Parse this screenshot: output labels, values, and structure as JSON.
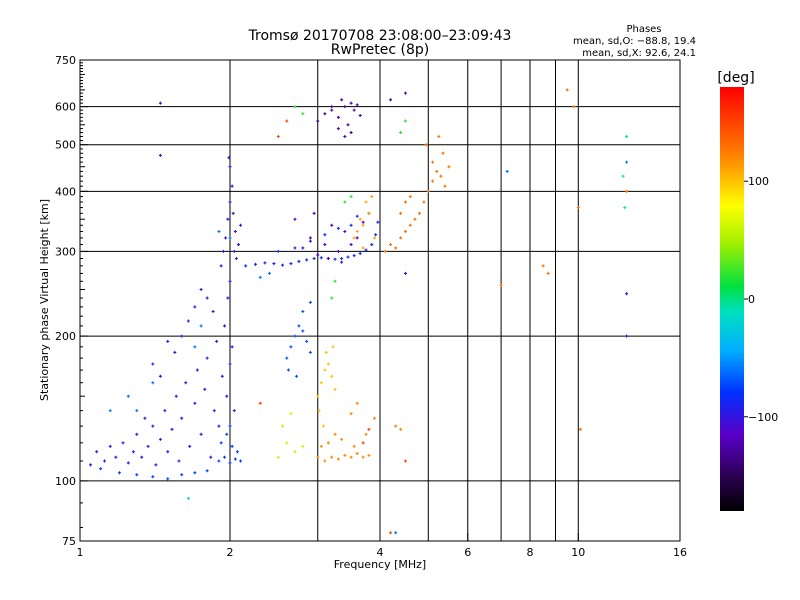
{
  "chart_data": {
    "type": "scatter",
    "title": "Tromsø 20170708 23:08:00–23:09:43",
    "subtitle": "RwPretec (8p)",
    "xlabel": "Frequency [MHz]",
    "ylabel": "Stationary phase Virtual Height [km]",
    "xscale": "log",
    "yscale": "log",
    "xlim": [
      1,
      16
    ],
    "ylim": [
      75,
      750
    ],
    "x_ticks": [
      1,
      2,
      4,
      6,
      8,
      10,
      16
    ],
    "x_tick_labels": [
      "1",
      "2",
      "4",
      "6",
      "8",
      "10",
      "16"
    ],
    "x_minor_ticks": [
      3,
      5,
      7,
      9
    ],
    "y_ticks": [
      75,
      100,
      200,
      300,
      400,
      500,
      600,
      750
    ],
    "y_tick_labels": [
      "75",
      "100",
      "200",
      "300",
      "400",
      "500",
      "600",
      "750"
    ],
    "grid": true,
    "stats": {
      "heading": "Phases",
      "line_o": "mean, sd,O: −88.8, 19.4",
      "line_x": "mean, sd,X:  92.6, 24.1"
    },
    "colorbar": {
      "label": "[deg]",
      "range": [
        -180,
        180
      ],
      "ticks": [
        100,
        0,
        -100
      ],
      "tick_labels": [
        "100",
        "0",
        "−100"
      ]
    },
    "series": [
      {
        "phase": -95,
        "points": [
          [
            1.05,
            108
          ],
          [
            1.08,
            115
          ],
          [
            1.12,
            110
          ],
          [
            1.15,
            118
          ],
          [
            1.18,
            112
          ],
          [
            1.22,
            120
          ],
          [
            1.25,
            109
          ],
          [
            1.28,
            115
          ],
          [
            1.3,
            125
          ],
          [
            1.33,
            112
          ],
          [
            1.37,
            118
          ],
          [
            1.4,
            130
          ],
          [
            1.42,
            108
          ],
          [
            1.45,
            122
          ],
          [
            1.48,
            140
          ],
          [
            1.5,
            115
          ],
          [
            1.53,
            128
          ],
          [
            1.56,
            150
          ],
          [
            1.58,
            110
          ],
          [
            1.6,
            135
          ],
          [
            1.63,
            160
          ],
          [
            1.66,
            118
          ],
          [
            1.7,
            145
          ],
          [
            1.72,
            170
          ],
          [
            1.75,
            125
          ],
          [
            1.78,
            155
          ],
          [
            1.8,
            180
          ],
          [
            1.83,
            112
          ],
          [
            1.86,
            140
          ],
          [
            1.88,
            195
          ],
          [
            1.9,
            130
          ],
          [
            1.93,
            165
          ],
          [
            1.95,
            210
          ],
          [
            1.97,
            150
          ],
          [
            2.0,
            175
          ],
          [
            2.02,
            190
          ],
          [
            2.04,
            140
          ],
          [
            1.35,
            135
          ],
          [
            1.45,
            165
          ],
          [
            1.55,
            185
          ],
          [
            1.6,
            200
          ],
          [
            1.65,
            215
          ],
          [
            1.7,
            230
          ],
          [
            1.75,
            250
          ],
          [
            1.8,
            240
          ],
          [
            1.85,
            225
          ],
          [
            1.5,
            195
          ],
          [
            1.4,
            175
          ]
        ]
      },
      {
        "phase": -105,
        "points": [
          [
            1.92,
            280
          ],
          [
            1.94,
            300
          ],
          [
            1.96,
            320
          ],
          [
            1.98,
            350
          ],
          [
            2.0,
            380
          ],
          [
            2.02,
            410
          ],
          [
            2.0,
            450
          ],
          [
            1.99,
            470
          ],
          [
            2.03,
            360
          ],
          [
            2.05,
            330
          ],
          [
            2.04,
            300
          ],
          [
            2.06,
            290
          ],
          [
            2.08,
            310
          ],
          [
            2.1,
            340
          ],
          [
            2.0,
            260
          ],
          [
            1.98,
            240
          ]
        ]
      },
      {
        "phase": -85,
        "points": [
          [
            2.15,
            280
          ],
          [
            2.25,
            282
          ],
          [
            2.35,
            284
          ],
          [
            2.45,
            283
          ],
          [
            2.55,
            281
          ],
          [
            2.65,
            283
          ],
          [
            2.75,
            286
          ],
          [
            2.85,
            288
          ],
          [
            2.95,
            290
          ],
          [
            3.05,
            291
          ],
          [
            3.15,
            290
          ],
          [
            3.25,
            289
          ],
          [
            3.35,
            290
          ],
          [
            3.45,
            292
          ],
          [
            3.55,
            294
          ],
          [
            3.65,
            297
          ],
          [
            3.75,
            302
          ],
          [
            3.85,
            310
          ],
          [
            3.92,
            325
          ],
          [
            3.96,
            345
          ],
          [
            2.5,
            300
          ],
          [
            2.7,
            305
          ],
          [
            2.9,
            315
          ],
          [
            3.1,
            325
          ],
          [
            3.3,
            335
          ],
          [
            3.5,
            340
          ],
          [
            3.6,
            355
          ]
        ]
      },
      {
        "phase": -120,
        "points": [
          [
            2.8,
            305
          ],
          [
            2.9,
            320
          ],
          [
            3.0,
            295
          ],
          [
            3.1,
            310
          ],
          [
            3.2,
            340
          ],
          [
            3.3,
            300
          ],
          [
            3.4,
            330
          ],
          [
            3.5,
            310
          ],
          [
            3.6,
            320
          ],
          [
            3.7,
            345
          ],
          [
            3.8,
            360
          ],
          [
            2.7,
            350
          ],
          [
            2.95,
            360
          ],
          [
            3.15,
            290
          ],
          [
            3.35,
            285
          ]
        ]
      },
      {
        "phase": -130,
        "points": [
          [
            3.0,
            560
          ],
          [
            3.1,
            580
          ],
          [
            3.2,
            590
          ],
          [
            3.3,
            570
          ],
          [
            3.4,
            600
          ],
          [
            3.5,
            610
          ],
          [
            3.55,
            590
          ],
          [
            3.6,
            605
          ],
          [
            3.65,
            575
          ],
          [
            3.45,
            550
          ],
          [
            3.5,
            530
          ],
          [
            3.4,
            520
          ],
          [
            3.3,
            540
          ],
          [
            3.2,
            600
          ],
          [
            3.35,
            620
          ],
          [
            4.2,
            620
          ],
          [
            4.5,
            640
          ]
        ]
      },
      {
        "phase": -75,
        "points": [
          [
            1.9,
            110
          ],
          [
            1.95,
            112
          ],
          [
            2.0,
            109
          ],
          [
            2.05,
            111
          ],
          [
            2.1,
            110
          ],
          [
            1.92,
            120
          ],
          [
            1.97,
            125
          ],
          [
            2.02,
            118
          ],
          [
            2.07,
            115
          ],
          [
            2.0,
            130
          ],
          [
            1.1,
            106
          ],
          [
            1.2,
            104
          ],
          [
            1.3,
            103
          ],
          [
            1.4,
            102
          ],
          [
            1.5,
            101
          ],
          [
            1.6,
            103
          ],
          [
            1.7,
            104
          ],
          [
            1.8,
            105
          ]
        ]
      },
      {
        "phase": -70,
        "points": [
          [
            2.6,
            180
          ],
          [
            2.65,
            190
          ],
          [
            2.7,
            200
          ],
          [
            2.75,
            210
          ],
          [
            2.8,
            205
          ],
          [
            2.85,
            195
          ],
          [
            2.9,
            185
          ],
          [
            2.62,
            170
          ],
          [
            2.72,
            165
          ],
          [
            2.8,
            225
          ],
          [
            2.9,
            235
          ]
        ]
      },
      {
        "phase": 100,
        "points": [
          [
            3.0,
            150
          ],
          [
            3.05,
            160
          ],
          [
            3.1,
            170
          ],
          [
            3.15,
            175
          ],
          [
            3.2,
            165
          ],
          [
            3.25,
            155
          ],
          [
            3.02,
            140
          ],
          [
            3.12,
            185
          ],
          [
            3.22,
            190
          ],
          [
            3.08,
            130
          ]
        ]
      },
      {
        "phase": 120,
        "points": [
          [
            3.0,
            112
          ],
          [
            3.1,
            110
          ],
          [
            3.2,
            112
          ],
          [
            3.3,
            111
          ],
          [
            3.4,
            113
          ],
          [
            3.5,
            112
          ],
          [
            3.6,
            114
          ],
          [
            3.7,
            112
          ],
          [
            3.8,
            113
          ],
          [
            3.05,
            118
          ],
          [
            3.15,
            120
          ],
          [
            3.25,
            125
          ],
          [
            3.35,
            122
          ],
          [
            3.55,
            118
          ],
          [
            3.75,
            125
          ],
          [
            3.9,
            135
          ],
          [
            4.3,
            130
          ],
          [
            4.4,
            128
          ],
          [
            3.5,
            138
          ],
          [
            3.6,
            145
          ]
        ]
      },
      {
        "phase": 60,
        "points": [
          [
            2.5,
            112
          ],
          [
            2.6,
            120
          ],
          [
            2.7,
            115
          ],
          [
            2.55,
            130
          ],
          [
            2.65,
            138
          ],
          [
            2.8,
            118
          ]
        ]
      },
      {
        "phase": 130,
        "points": [
          [
            4.1,
            300
          ],
          [
            4.2,
            310
          ],
          [
            4.3,
            305
          ],
          [
            4.4,
            320
          ],
          [
            4.5,
            330
          ],
          [
            4.6,
            340
          ],
          [
            4.7,
            350
          ],
          [
            4.8,
            360
          ],
          [
            4.9,
            380
          ],
          [
            5.0,
            400
          ],
          [
            5.1,
            420
          ],
          [
            5.2,
            440
          ],
          [
            5.3,
            430
          ],
          [
            5.4,
            410
          ],
          [
            5.5,
            450
          ],
          [
            5.35,
            480
          ],
          [
            5.1,
            460
          ],
          [
            4.95,
            500
          ],
          [
            5.25,
            520
          ],
          [
            4.4,
            360
          ],
          [
            4.5,
            380
          ],
          [
            4.6,
            390
          ]
        ]
      },
      {
        "phase": 110,
        "points": [
          [
            3.6,
            330
          ],
          [
            3.7,
            340
          ],
          [
            3.8,
            360
          ],
          [
            3.65,
            350
          ],
          [
            3.75,
            380
          ],
          [
            3.85,
            390
          ],
          [
            3.55,
            320
          ],
          [
            3.9,
            320
          ],
          [
            3.7,
            305
          ]
        ]
      },
      {
        "phase": 20,
        "points": [
          [
            3.2,
            240
          ],
          [
            3.25,
            260
          ],
          [
            3.4,
            380
          ],
          [
            3.5,
            390
          ],
          [
            4.5,
            560
          ],
          [
            4.4,
            530
          ],
          [
            2.7,
            600
          ],
          [
            2.8,
            580
          ]
        ]
      },
      {
        "phase": -60,
        "points": [
          [
            1.15,
            140
          ],
          [
            1.25,
            150
          ],
          [
            1.4,
            160
          ],
          [
            1.7,
            190
          ],
          [
            1.75,
            210
          ],
          [
            2.3,
            265
          ],
          [
            2.4,
            270
          ],
          [
            1.3,
            140
          ],
          [
            1.9,
            330
          ],
          [
            2.0,
            320
          ]
        ]
      },
      {
        "phase": 150,
        "points": [
          [
            4.5,
            110
          ],
          [
            2.3,
            145
          ],
          [
            2.5,
            520
          ],
          [
            2.6,
            560
          ],
          [
            3.7,
            120
          ],
          [
            3.8,
            128
          ],
          [
            4.2,
            78
          ]
        ]
      },
      {
        "phase": -110,
        "points": [
          [
            1.45,
            610
          ],
          [
            1.45,
            475
          ],
          [
            12.5,
            245
          ],
          [
            4.5,
            270
          ],
          [
            12.5,
            200
          ]
        ]
      },
      {
        "phase": -10,
        "points": [
          [
            1.65,
            92
          ],
          [
            12.5,
            520
          ],
          [
            12.3,
            430
          ],
          [
            12.4,
            370
          ]
        ]
      },
      {
        "phase": 130,
        "points": [
          [
            9.5,
            650
          ],
          [
            10.0,
            370
          ],
          [
            10.1,
            128
          ],
          [
            9.8,
            600
          ],
          [
            7.0,
            255
          ],
          [
            8.5,
            280
          ],
          [
            8.7,
            270
          ],
          [
            12.5,
            400
          ]
        ]
      },
      {
        "phase": -60,
        "points": [
          [
            7.2,
            440
          ],
          [
            4.3,
            78
          ],
          [
            12.5,
            460
          ]
        ]
      }
    ]
  }
}
